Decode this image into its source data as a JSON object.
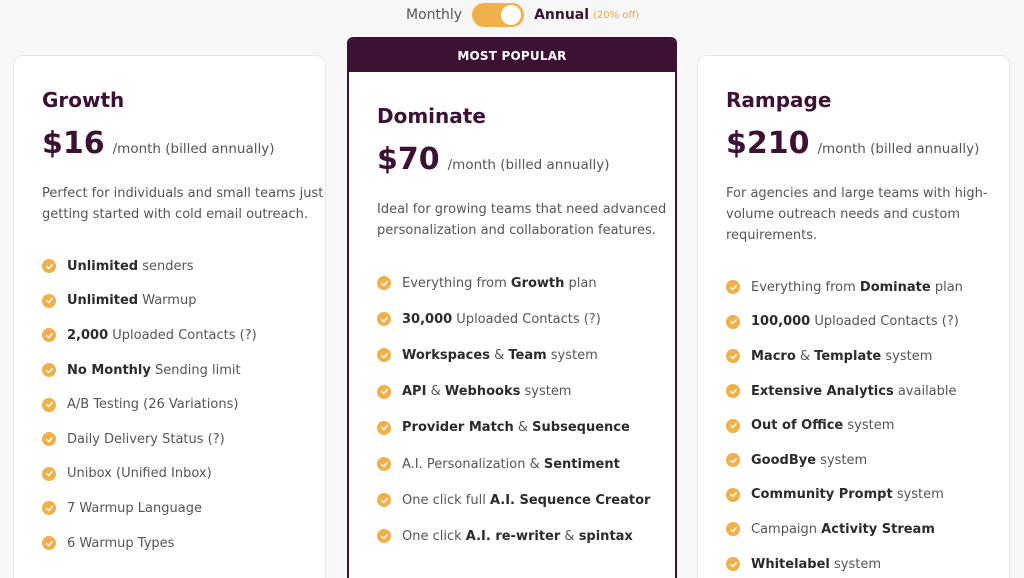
{
  "toggle": {
    "monthly_label": "Monthly",
    "annual_label": "Annual",
    "annual_badge": "(20% off)"
  },
  "colors": {
    "accent": "#f0b04a",
    "brand": "#3d1133"
  },
  "plans": [
    {
      "name": "Growth",
      "price": "$16",
      "period": "/month (billed annually)",
      "description": "Perfect for individuals and small teams just getting started with cold email outreach.",
      "features": [
        [
          {
            "b": "Unlimited"
          },
          {
            "t": " senders"
          }
        ],
        [
          {
            "b": "Unlimited"
          },
          {
            "t": " Warmup"
          }
        ],
        [
          {
            "b": "2,000"
          },
          {
            "t": " Uploaded Contacts (?)"
          }
        ],
        [
          {
            "b": "No Monthly"
          },
          {
            "t": " Sending limit"
          }
        ],
        [
          {
            "t": "A/B Testing (26 Variations)"
          }
        ],
        [
          {
            "t": "Daily Delivery Status (?)"
          }
        ],
        [
          {
            "t": "Unibox (Unified Inbox)"
          }
        ],
        [
          {
            "t": "7 Warmup Language"
          }
        ],
        [
          {
            "t": "6 Warmup Types"
          }
        ]
      ]
    },
    {
      "badge": "MOST POPULAR",
      "name": "Dominate",
      "price": "$70",
      "period": "/month (billed annually)",
      "description": "Ideal for growing teams that need advanced personalization and collaboration features.",
      "features": [
        [
          {
            "t": "Everything from "
          },
          {
            "b": "Growth"
          },
          {
            "t": " plan"
          }
        ],
        [
          {
            "b": "30,000"
          },
          {
            "t": " Uploaded Contacts (?)"
          }
        ],
        [
          {
            "b": "Workspaces"
          },
          {
            "t": " & "
          },
          {
            "b": "Team"
          },
          {
            "t": " system"
          }
        ],
        [
          {
            "b": "API"
          },
          {
            "t": " & "
          },
          {
            "b": "Webhooks"
          },
          {
            "t": " system"
          }
        ],
        [
          {
            "b": "Provider Match"
          },
          {
            "t": " & "
          },
          {
            "b": "Subsequence"
          }
        ],
        [
          {
            "t": "A.I. Personalization & "
          },
          {
            "b": "Sentiment"
          }
        ],
        [
          {
            "t": "One click full "
          },
          {
            "b": "A.I. Sequence Creator"
          }
        ],
        [
          {
            "t": "One click "
          },
          {
            "b": "A.I. re-writer"
          },
          {
            "t": " & "
          },
          {
            "b": "spintax"
          }
        ]
      ]
    },
    {
      "name": "Rampage",
      "price": "$210",
      "period": "/month (billed annually)",
      "description": "For agencies and large teams with high-volume outreach needs and custom requirements.",
      "features": [
        [
          {
            "t": "Everything from "
          },
          {
            "b": "Dominate"
          },
          {
            "t": " plan"
          }
        ],
        [
          {
            "b": "100,000"
          },
          {
            "t": " Uploaded Contacts (?)"
          }
        ],
        [
          {
            "b": "Macro"
          },
          {
            "t": " & "
          },
          {
            "b": "Template"
          },
          {
            "t": " system"
          }
        ],
        [
          {
            "b": "Extensive Analytics"
          },
          {
            "t": " available"
          }
        ],
        [
          {
            "b": "Out of Office"
          },
          {
            "t": " system"
          }
        ],
        [
          {
            "b": "GoodBye"
          },
          {
            "t": " system"
          }
        ],
        [
          {
            "b": "Community Prompt"
          },
          {
            "t": " system"
          }
        ],
        [
          {
            "t": "Campaign "
          },
          {
            "b": "Activity Stream"
          }
        ],
        [
          {
            "b": "Whitelabel"
          },
          {
            "t": " system"
          }
        ]
      ]
    }
  ]
}
